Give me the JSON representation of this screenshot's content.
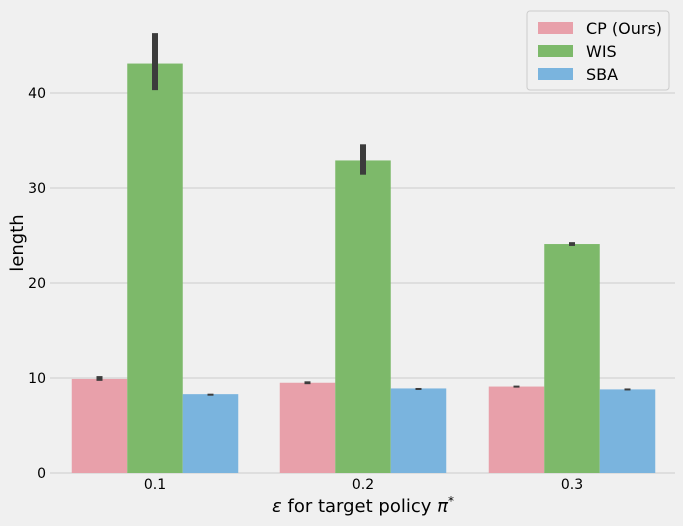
{
  "chart_data": {
    "type": "bar",
    "categories": [
      "0.1",
      "0.2",
      "0.3"
    ],
    "series": [
      {
        "name": "CP (Ours)",
        "color": "#e8a0aa",
        "values": [
          9.9,
          9.5,
          9.1
        ],
        "err_low": [
          9.7,
          9.35,
          9.0
        ],
        "err_high": [
          10.2,
          9.65,
          9.2
        ]
      },
      {
        "name": "WIS",
        "color": "#7db96a",
        "values": [
          43.1,
          32.9,
          24.1
        ],
        "err_low": [
          40.3,
          31.4,
          23.9
        ],
        "err_high": [
          46.3,
          34.6,
          24.3
        ]
      },
      {
        "name": "SBA",
        "color": "#7ab4de",
        "values": [
          8.3,
          8.9,
          8.8
        ],
        "err_low": [
          8.25,
          8.85,
          8.7
        ],
        "err_high": [
          8.35,
          8.95,
          8.9
        ]
      }
    ],
    "yticks": [
      0,
      10,
      20,
      30,
      40
    ],
    "ylim": [
      0,
      47
    ],
    "xlabel_prefix": "ε",
    "xlabel_text": " for target policy ",
    "xlabel_suffix": "π",
    "xlabel_sup": "*",
    "ylabel": "length",
    "grid": "horizontal",
    "legend": "top-right"
  }
}
